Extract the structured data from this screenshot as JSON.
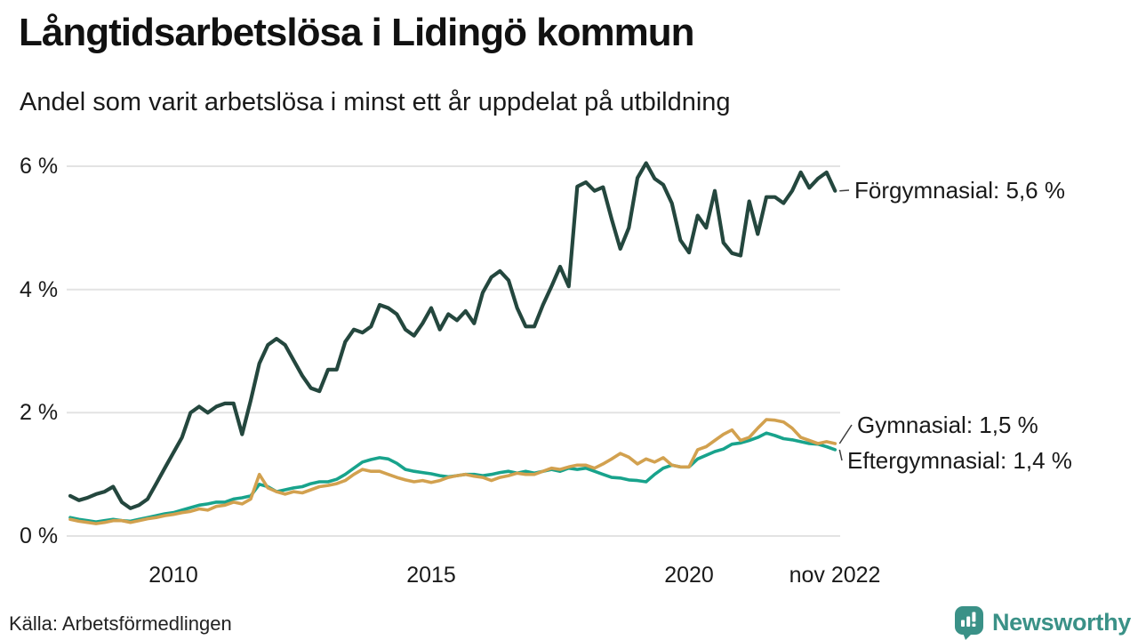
{
  "chart_data": {
    "type": "line",
    "title": "Långtidsarbetslösa i Lidingö kommun",
    "subtitle": "Andel som varit arbetslösa i minst ett år uppdelat på utbildning",
    "source": "Källa: Arbetsförmedlingen",
    "unit": "%",
    "grid": true,
    "ylim": [
      0,
      6.3
    ],
    "x_start_year": 2008,
    "x_step_months": 2,
    "y_ticks": [
      {
        "value": 0,
        "label": "0 %"
      },
      {
        "value": 2,
        "label": "2 %"
      },
      {
        "value": 4,
        "label": "4 %"
      },
      {
        "value": 6,
        "label": "6 %"
      }
    ],
    "x_ticks": [
      {
        "t": 2010,
        "label": "2010"
      },
      {
        "t": 2015,
        "label": "2015"
      },
      {
        "t": 2020,
        "label": "2020"
      },
      {
        "t": 2022.8333,
        "label": "nov 2022"
      }
    ],
    "series": [
      {
        "name": "Förgymnasial",
        "end_label": "Förgymnasial: 5,6 %",
        "end_value_text": "5,6 %",
        "color": "#24473E",
        "values": [
          0.65,
          0.58,
          0.62,
          0.68,
          0.72,
          0.8,
          0.55,
          0.45,
          0.5,
          0.6,
          0.85,
          1.1,
          1.35,
          1.6,
          2.0,
          2.1,
          2.0,
          2.1,
          2.15,
          2.15,
          1.65,
          2.2,
          2.8,
          3.1,
          3.2,
          3.1,
          2.85,
          2.6,
          2.4,
          2.35,
          2.7,
          2.7,
          3.15,
          3.35,
          3.3,
          3.4,
          3.75,
          3.7,
          3.6,
          3.35,
          3.25,
          3.45,
          3.7,
          3.35,
          3.6,
          3.5,
          3.65,
          3.45,
          3.95,
          4.2,
          4.3,
          4.15,
          3.7,
          3.4,
          3.4,
          3.75,
          4.05,
          4.37,
          4.05,
          5.67,
          5.74,
          5.6,
          5.66,
          5.14,
          4.66,
          5.0,
          5.81,
          6.05,
          5.8,
          5.7,
          5.4,
          4.8,
          4.6,
          5.2,
          5.0,
          5.6,
          4.76,
          4.59,
          4.55,
          5.43,
          4.9,
          5.5,
          5.5,
          5.4,
          5.6,
          5.9,
          5.65,
          5.8,
          5.9,
          5.6
        ]
      },
      {
        "name": "Gymnasial",
        "end_label": "Gymnasial: 1,5 %",
        "end_value_text": "1,5 %",
        "color": "#D2A14F",
        "values": [
          0.27,
          0.24,
          0.22,
          0.2,
          0.22,
          0.25,
          0.25,
          0.22,
          0.25,
          0.28,
          0.3,
          0.33,
          0.35,
          0.38,
          0.4,
          0.44,
          0.42,
          0.48,
          0.5,
          0.55,
          0.52,
          0.6,
          1.0,
          0.78,
          0.72,
          0.68,
          0.72,
          0.7,
          0.75,
          0.8,
          0.82,
          0.85,
          0.9,
          1.0,
          1.08,
          1.05,
          1.05,
          1.0,
          0.95,
          0.91,
          0.88,
          0.9,
          0.87,
          0.9,
          0.95,
          0.98,
          1.0,
          0.97,
          0.95,
          0.9,
          0.95,
          0.98,
          1.02,
          1.0,
          1.0,
          1.05,
          1.1,
          1.08,
          1.12,
          1.15,
          1.15,
          1.1,
          1.17,
          1.25,
          1.34,
          1.28,
          1.17,
          1.25,
          1.2,
          1.27,
          1.15,
          1.12,
          1.12,
          1.4,
          1.45,
          1.55,
          1.65,
          1.72,
          1.55,
          1.6,
          1.75,
          1.89,
          1.88,
          1.85,
          1.75,
          1.6,
          1.55,
          1.5,
          1.53,
          1.5
        ]
      },
      {
        "name": "Eftergymnasial",
        "end_label": "Eftergymnasial: 1,4 %",
        "end_value_text": "1,4 %",
        "color": "#18A38C",
        "values": [
          0.3,
          0.27,
          0.25,
          0.23,
          0.25,
          0.27,
          0.25,
          0.24,
          0.27,
          0.3,
          0.33,
          0.36,
          0.38,
          0.42,
          0.46,
          0.5,
          0.52,
          0.55,
          0.55,
          0.6,
          0.62,
          0.65,
          0.84,
          0.8,
          0.72,
          0.75,
          0.78,
          0.8,
          0.85,
          0.88,
          0.88,
          0.92,
          1.0,
          1.1,
          1.2,
          1.24,
          1.27,
          1.25,
          1.18,
          1.08,
          1.05,
          1.03,
          1.01,
          0.98,
          0.96,
          0.98,
          1.0,
          1.0,
          0.98,
          1.0,
          1.03,
          1.05,
          1.02,
          1.05,
          1.02,
          1.05,
          1.08,
          1.05,
          1.1,
          1.08,
          1.1,
          1.05,
          1.0,
          0.95,
          0.94,
          0.91,
          0.9,
          0.88,
          1.0,
          1.1,
          1.15,
          1.12,
          1.12,
          1.25,
          1.31,
          1.37,
          1.41,
          1.49,
          1.51,
          1.55,
          1.6,
          1.67,
          1.63,
          1.58,
          1.56,
          1.53,
          1.5,
          1.49,
          1.45,
          1.4
        ]
      }
    ]
  },
  "footer": {
    "brand_name": "Newsworthy",
    "brand_color": "#3A9187"
  }
}
